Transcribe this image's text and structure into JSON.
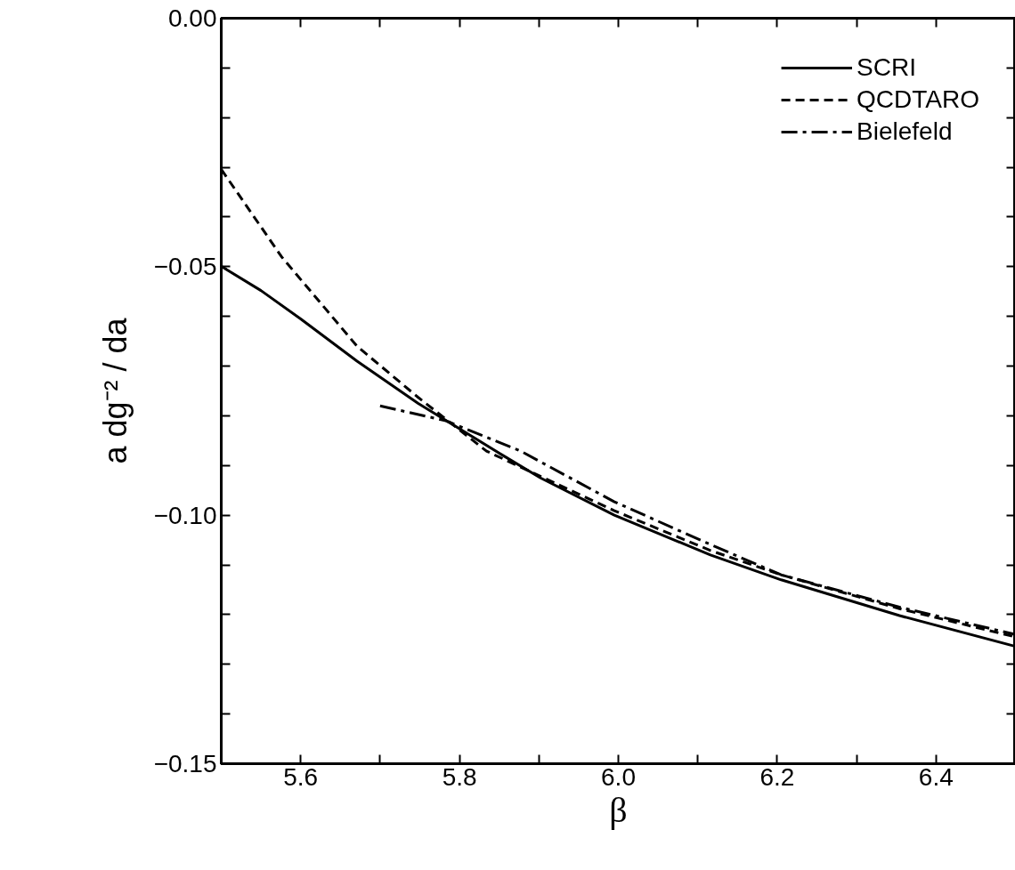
{
  "chart_data": {
    "type": "line",
    "xlabel": "β",
    "ylabel": "a dg⁻² / da",
    "xlim": [
      5.5,
      6.5
    ],
    "ylim": [
      -0.15,
      0.0
    ],
    "xticks": [
      {
        "value": 5.5,
        "label": null
      },
      5.6,
      {
        "value": 5.7,
        "label": null
      },
      5.8,
      {
        "value": 5.9,
        "label": null
      },
      {
        "value": 6.0,
        "label": "6.0"
      },
      {
        "value": 6.1,
        "label": null
      },
      6.2,
      {
        "value": 6.3,
        "label": null
      },
      6.4,
      {
        "value": 6.5,
        "label": null
      }
    ],
    "yticks": [
      {
        "value": 0.0,
        "label": "0.00"
      },
      {
        "value": -0.01,
        "label": null
      },
      {
        "value": -0.02,
        "label": null
      },
      {
        "value": -0.03,
        "label": null
      },
      {
        "value": -0.04,
        "label": null
      },
      {
        "value": -0.05,
        "label": "−0.05"
      },
      {
        "value": -0.06,
        "label": null
      },
      {
        "value": -0.07,
        "label": null
      },
      {
        "value": -0.08,
        "label": null
      },
      {
        "value": -0.09,
        "label": null
      },
      {
        "value": -0.1,
        "label": "−0.10"
      },
      {
        "value": -0.11,
        "label": null
      },
      {
        "value": -0.12,
        "label": null
      },
      {
        "value": -0.13,
        "label": null
      },
      {
        "value": -0.14,
        "label": null
      },
      {
        "value": -0.15,
        "label": "−0.15"
      }
    ],
    "grid": false,
    "legend": "top right",
    "series": [
      {
        "name": "SCRI",
        "color": "#000000",
        "line_style": "solid",
        "x": [
          5.5,
          5.55,
          5.6,
          5.671,
          5.748,
          5.855,
          5.902,
          5.995,
          6.116,
          6.205,
          6.354,
          6.5
        ],
        "values": [
          -0.0499,
          -0.0548,
          -0.0605,
          -0.069,
          -0.0775,
          -0.088,
          -0.0925,
          -0.1,
          -0.108,
          -0.113,
          -0.1202,
          -0.1264
        ]
      },
      {
        "name": "QCDTARO",
        "color": "#000000",
        "line_style": "dashed",
        "x": [
          5.5,
          5.576,
          5.671,
          5.748,
          5.834,
          5.995,
          6.116,
          6.205,
          6.354,
          6.5
        ],
        "values": [
          -0.0304,
          -0.048,
          -0.066,
          -0.0763,
          -0.0871,
          -0.0991,
          -0.1071,
          -0.112,
          -0.1188,
          -0.1245
        ]
      },
      {
        "name": "Bielefeld",
        "color": "#000000",
        "line_style": "dashdot",
        "x": [
          5.7,
          5.783,
          5.877,
          5.995,
          6.116,
          6.205,
          6.354,
          6.5
        ],
        "values": [
          -0.078,
          -0.081,
          -0.0871,
          -0.0973,
          -0.1059,
          -0.112,
          -0.1185,
          -0.124
        ]
      }
    ]
  }
}
